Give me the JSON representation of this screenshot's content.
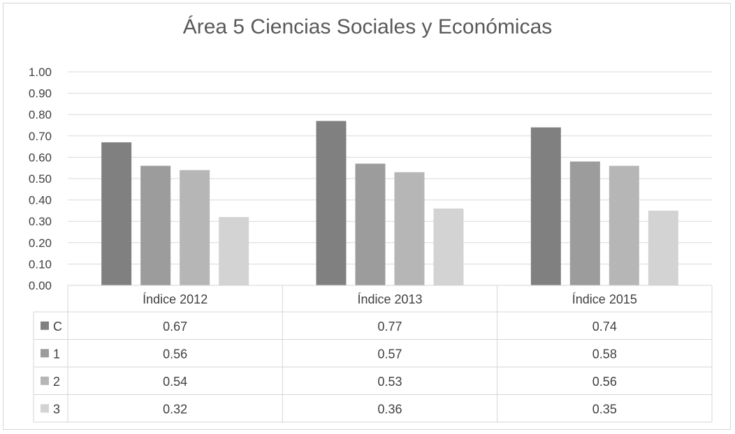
{
  "chart_data": {
    "type": "bar",
    "title": "Área 5 Ciencias Sociales y Económicas",
    "categories": [
      "Índice 2012",
      "Índice 2013",
      "Índice 2015"
    ],
    "series": [
      {
        "name": "C",
        "values": [
          0.67,
          0.77,
          0.74
        ],
        "color": "#808080"
      },
      {
        "name": "1",
        "values": [
          0.56,
          0.57,
          0.58
        ],
        "color": "#9c9c9c"
      },
      {
        "name": "2",
        "values": [
          0.54,
          0.53,
          0.56
        ],
        "color": "#b6b6b6"
      },
      {
        "name": "3",
        "values": [
          0.32,
          0.36,
          0.35
        ],
        "color": "#d3d3d3"
      }
    ],
    "ylim": [
      0,
      1.0
    ],
    "yticks": [
      "0.00",
      "0.10",
      "0.20",
      "0.30",
      "0.40",
      "0.50",
      "0.60",
      "0.70",
      "0.80",
      "0.90",
      "1.00"
    ],
    "value_labels": [
      [
        "0.67",
        "0.77",
        "0.74"
      ],
      [
        "0.56",
        "0.57",
        "0.58"
      ],
      [
        "0.54",
        "0.53",
        "0.56"
      ],
      [
        "0.32",
        "0.36",
        "0.35"
      ]
    ],
    "grid": true,
    "legend": "data-table"
  }
}
